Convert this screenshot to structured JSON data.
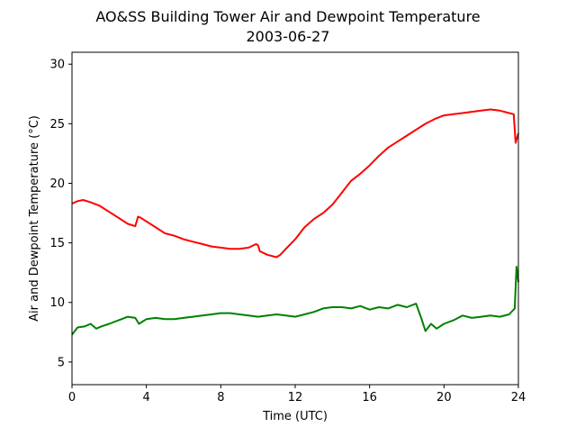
{
  "chart_data": {
    "type": "line",
    "title": "AO&SS Building Tower Air and Dewpoint Temperature",
    "subtitle": "2003-06-27",
    "xlabel": "Time (UTC)",
    "ylabel": "Air and Dewpoint Temperature (°C)",
    "xlim": [
      0,
      24
    ],
    "ylim": [
      3.1,
      31
    ],
    "xticks": [
      0,
      4,
      8,
      12,
      16,
      20,
      24
    ],
    "yticks": [
      5,
      10,
      15,
      20,
      25,
      30
    ],
    "grid": false,
    "legend": "none",
    "series": [
      {
        "color": "#ff0000",
        "x": [
          0,
          0.3,
          0.6,
          1.0,
          1.5,
          2.0,
          2.5,
          3.0,
          3.4,
          3.55,
          3.7,
          4.0,
          4.5,
          5.0,
          5.5,
          6.0,
          6.5,
          7.0,
          7.5,
          8.0,
          8.5,
          9.0,
          9.5,
          9.9,
          10.0,
          10.1,
          10.5,
          11.0,
          11.2,
          11.5,
          12.0,
          12.5,
          13.0,
          13.5,
          14.0,
          14.5,
          15.0,
          15.5,
          16.0,
          16.5,
          17.0,
          17.5,
          18.0,
          18.5,
          19.0,
          19.5,
          20.0,
          20.5,
          21.0,
          21.5,
          22.0,
          22.5,
          23.0,
          23.5,
          23.75,
          23.85,
          24.0
        ],
        "y": [
          18.3,
          18.5,
          18.6,
          18.4,
          18.1,
          17.6,
          17.1,
          16.6,
          16.4,
          17.2,
          17.1,
          16.8,
          16.3,
          15.8,
          15.6,
          15.3,
          15.1,
          14.9,
          14.7,
          14.6,
          14.5,
          14.5,
          14.6,
          14.9,
          14.8,
          14.3,
          14.0,
          13.8,
          14.0,
          14.5,
          15.3,
          16.3,
          17.0,
          17.5,
          18.2,
          19.2,
          20.2,
          20.8,
          21.5,
          22.3,
          23.0,
          23.5,
          24.0,
          24.5,
          25.0,
          25.4,
          25.7,
          25.8,
          25.9,
          26.0,
          26.1,
          26.2,
          26.1,
          25.9,
          25.8,
          23.4,
          24.2
        ]
      },
      {
        "color": "#008000",
        "x": [
          0,
          0.3,
          0.7,
          1.0,
          1.3,
          1.6,
          2.0,
          2.5,
          3.0,
          3.4,
          3.6,
          3.8,
          4.0,
          4.5,
          5.0,
          5.5,
          6.0,
          6.5,
          7.0,
          7.5,
          8.0,
          8.5,
          9.0,
          9.5,
          10.0,
          10.5,
          11.0,
          11.5,
          12.0,
          12.5,
          13.0,
          13.5,
          14.0,
          14.5,
          15.0,
          15.5,
          16.0,
          16.5,
          17.0,
          17.5,
          18.0,
          18.5,
          18.8,
          19.0,
          19.3,
          19.6,
          20.0,
          20.5,
          21.0,
          21.5,
          22.0,
          22.5,
          23.0,
          23.5,
          23.8,
          23.9,
          24.0
        ],
        "y": [
          7.3,
          7.9,
          8.0,
          8.2,
          7.8,
          8.0,
          8.2,
          8.5,
          8.8,
          8.7,
          8.2,
          8.4,
          8.6,
          8.7,
          8.6,
          8.6,
          8.7,
          8.8,
          8.9,
          9.0,
          9.1,
          9.1,
          9.0,
          8.9,
          8.8,
          8.9,
          9.0,
          8.9,
          8.8,
          9.0,
          9.2,
          9.5,
          9.6,
          9.6,
          9.5,
          9.7,
          9.4,
          9.6,
          9.5,
          9.8,
          9.6,
          9.9,
          8.6,
          7.6,
          8.2,
          7.8,
          8.2,
          8.5,
          8.9,
          8.7,
          8.8,
          8.9,
          8.8,
          9.0,
          9.5,
          13.0,
          11.7
        ]
      }
    ]
  }
}
